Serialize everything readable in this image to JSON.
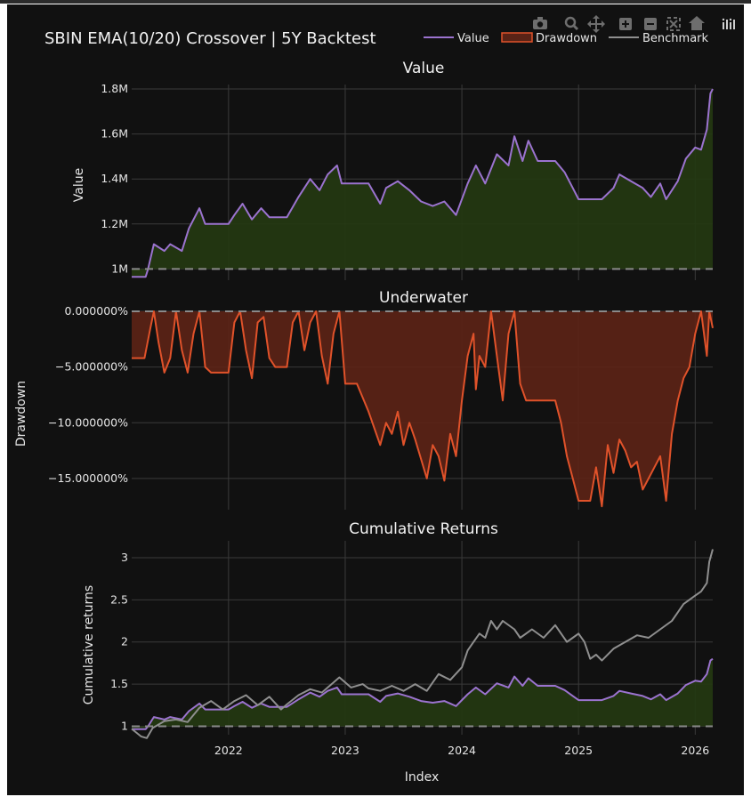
{
  "page": {
    "title": "SBIN EMA(10/20) Crossover | 5Y Backtest"
  },
  "legend": {
    "items": [
      {
        "label": "Value",
        "color": "#9b73cf",
        "kind": "line"
      },
      {
        "label": "Drawdown",
        "color": "#e0522a",
        "kind": "fill"
      },
      {
        "label": "Benchmark",
        "color": "#8f8f8f",
        "kind": "line"
      }
    ]
  },
  "modebar": {
    "icons": [
      "camera-icon",
      "zoom-icon",
      "pan-icon",
      "zoom-in-icon",
      "zoom-out-icon",
      "autoscale-icon",
      "home-icon",
      "plotly-logo-icon"
    ]
  },
  "colors": {
    "background": "#111111",
    "value": "#9b73cf",
    "value_fill": "#243812",
    "drawdown": "#e0522a",
    "drawdown_fill": "#5a2316",
    "benchmark": "#8f8f8f",
    "baseline": "#8a8a8a"
  },
  "x_axis": {
    "title": "Index",
    "ticks": [
      "2022",
      "2023",
      "2024",
      "2025",
      "2026"
    ],
    "tick_values": [
      2022.0,
      2023.0,
      2024.0,
      2025.0,
      2026.0
    ],
    "range": [
      2021.17,
      2026.15
    ]
  },
  "chart_data": [
    {
      "type": "area",
      "subtitle": "Value",
      "ylabel": "Value",
      "yticks": [
        "1M",
        "1.2M",
        "1.4M",
        "1.6M",
        "1.8M"
      ],
      "ytick_values": [
        1000000,
        1200000,
        1400000,
        1600000,
        1800000
      ],
      "ylim": [
        950000,
        1820000
      ],
      "baseline": 1000000,
      "series": [
        {
          "name": "Value",
          "x": [
            2021.17,
            2021.29,
            2021.31,
            2021.36,
            2021.45,
            2021.5,
            2021.6,
            2021.66,
            2021.75,
            2021.8,
            2021.92,
            2022.0,
            2022.05,
            2022.12,
            2022.2,
            2022.28,
            2022.35,
            2022.42,
            2022.5,
            2022.6,
            2022.7,
            2022.78,
            2022.85,
            2022.93,
            2022.97,
            2023.05,
            2023.2,
            2023.3,
            2023.35,
            2023.45,
            2023.55,
            2023.65,
            2023.75,
            2023.85,
            2023.95,
            2024.05,
            2024.12,
            2024.2,
            2024.3,
            2024.4,
            2024.45,
            2024.52,
            2024.57,
            2024.65,
            2024.8,
            2024.88,
            2024.95,
            2025.0,
            2025.2,
            2025.3,
            2025.35,
            2025.45,
            2025.55,
            2025.62,
            2025.7,
            2025.75,
            2025.85,
            2025.92,
            2026.0,
            2026.05,
            2026.1,
            2026.13,
            2026.15
          ],
          "y": [
            965000,
            965000,
            1000000,
            1110000,
            1080000,
            1110000,
            1080000,
            1180000,
            1270000,
            1200000,
            1200000,
            1200000,
            1240000,
            1290000,
            1220000,
            1270000,
            1230000,
            1230000,
            1230000,
            1320000,
            1400000,
            1350000,
            1420000,
            1460000,
            1380000,
            1380000,
            1380000,
            1290000,
            1360000,
            1390000,
            1350000,
            1300000,
            1280000,
            1300000,
            1240000,
            1380000,
            1460000,
            1380000,
            1510000,
            1460000,
            1590000,
            1480000,
            1570000,
            1480000,
            1480000,
            1430000,
            1360000,
            1310000,
            1310000,
            1360000,
            1420000,
            1390000,
            1360000,
            1320000,
            1380000,
            1310000,
            1390000,
            1490000,
            1540000,
            1530000,
            1620000,
            1780000,
            1800000
          ]
        }
      ]
    },
    {
      "type": "area",
      "subtitle": "Underwater",
      "ylabel": "Drawdown",
      "yticks": [
        "0.000000%",
        "−5.000000%",
        "−10.000000%",
        "−15.000000%"
      ],
      "ytick_values": [
        0,
        -5,
        -10,
        -15
      ],
      "ylim": [
        -17.8,
        0
      ],
      "baseline": 0,
      "series": [
        {
          "name": "Drawdown",
          "x": [
            2021.17,
            2021.28,
            2021.33,
            2021.36,
            2021.4,
            2021.45,
            2021.5,
            2021.55,
            2021.6,
            2021.65,
            2021.7,
            2021.75,
            2021.8,
            2021.85,
            2021.92,
            2022.0,
            2022.05,
            2022.1,
            2022.15,
            2022.2,
            2022.25,
            2022.3,
            2022.35,
            2022.4,
            2022.45,
            2022.5,
            2022.55,
            2022.6,
            2022.65,
            2022.7,
            2022.75,
            2022.8,
            2022.85,
            2022.9,
            2022.95,
            2023.0,
            2023.1,
            2023.2,
            2023.3,
            2023.35,
            2023.4,
            2023.45,
            2023.5,
            2023.55,
            2023.6,
            2023.7,
            2023.75,
            2023.8,
            2023.85,
            2023.9,
            2023.95,
            2024.0,
            2024.05,
            2024.1,
            2024.12,
            2024.15,
            2024.2,
            2024.25,
            2024.3,
            2024.35,
            2024.4,
            2024.45,
            2024.5,
            2024.55,
            2024.6,
            2024.65,
            2024.7,
            2024.75,
            2024.8,
            2024.85,
            2024.9,
            2024.95,
            2025.0,
            2025.1,
            2025.15,
            2025.2,
            2025.25,
            2025.3,
            2025.35,
            2025.4,
            2025.45,
            2025.5,
            2025.55,
            2025.6,
            2025.65,
            2025.7,
            2025.75,
            2025.8,
            2025.85,
            2025.9,
            2025.95,
            2026.0,
            2026.05,
            2026.1,
            2026.12,
            2026.15
          ],
          "y": [
            -4.2,
            -4.2,
            -1.5,
            0,
            -2.8,
            -5.5,
            -4.2,
            0,
            -3.5,
            -5.5,
            -2.0,
            0,
            -5.0,
            -5.5,
            -5.5,
            -5.5,
            -1.0,
            0,
            -3.5,
            -6.0,
            -1.0,
            -0.5,
            -4.2,
            -5.0,
            -5.0,
            -5.0,
            -1.0,
            0,
            -3.5,
            -1.0,
            0,
            -4.0,
            -6.5,
            -2.0,
            0,
            -6.5,
            -6.5,
            -9.0,
            -12.0,
            -10.0,
            -11.0,
            -9.0,
            -12.0,
            -10.0,
            -11.5,
            -15.0,
            -12.0,
            -13.0,
            -15.2,
            -11.0,
            -13.0,
            -8.0,
            -4.0,
            -2.0,
            -7.0,
            -4.0,
            -5.0,
            0,
            -4.0,
            -8.0,
            -2.0,
            0,
            -6.5,
            -8.0,
            -8.0,
            -8.0,
            -8.0,
            -8.0,
            -8.0,
            -10.0,
            -13.0,
            -15.0,
            -17.0,
            -17.0,
            -14.0,
            -17.5,
            -12.0,
            -14.5,
            -11.5,
            -12.5,
            -14.0,
            -13.5,
            -16.0,
            -15.0,
            -14.0,
            -13.0,
            -17.0,
            -11.0,
            -8.0,
            -6.0,
            -5.0,
            -2.0,
            0,
            -4.0,
            0,
            -1.5
          ]
        }
      ]
    },
    {
      "type": "line",
      "subtitle": "Cumulative Returns",
      "ylabel": "Cumulative returns",
      "yticks": [
        "1",
        "1.5",
        "2",
        "2.5",
        "3"
      ],
      "ytick_values": [
        1,
        1.5,
        2,
        2.5,
        3
      ],
      "ylim": [
        0.9,
        3.2
      ],
      "baseline": 1,
      "series": [
        {
          "name": "Value",
          "x": [
            2021.17,
            2021.29,
            2021.31,
            2021.36,
            2021.45,
            2021.5,
            2021.6,
            2021.66,
            2021.75,
            2021.8,
            2021.92,
            2022.0,
            2022.05,
            2022.12,
            2022.2,
            2022.28,
            2022.35,
            2022.42,
            2022.5,
            2022.6,
            2022.7,
            2022.78,
            2022.85,
            2022.93,
            2022.97,
            2023.05,
            2023.2,
            2023.3,
            2023.35,
            2023.45,
            2023.55,
            2023.65,
            2023.75,
            2023.85,
            2023.95,
            2024.05,
            2024.12,
            2024.2,
            2024.3,
            2024.4,
            2024.45,
            2024.52,
            2024.57,
            2024.65,
            2024.8,
            2024.88,
            2024.95,
            2025.0,
            2025.2,
            2025.3,
            2025.35,
            2025.45,
            2025.55,
            2025.62,
            2025.7,
            2025.75,
            2025.85,
            2025.92,
            2026.0,
            2026.05,
            2026.1,
            2026.13,
            2026.15
          ],
          "y": [
            0.965,
            0.965,
            1.0,
            1.11,
            1.08,
            1.11,
            1.08,
            1.18,
            1.27,
            1.2,
            1.2,
            1.2,
            1.24,
            1.29,
            1.22,
            1.27,
            1.23,
            1.23,
            1.23,
            1.32,
            1.4,
            1.35,
            1.42,
            1.46,
            1.38,
            1.38,
            1.38,
            1.29,
            1.36,
            1.39,
            1.35,
            1.3,
            1.28,
            1.3,
            1.24,
            1.38,
            1.46,
            1.38,
            1.51,
            1.46,
            1.59,
            1.48,
            1.57,
            1.48,
            1.48,
            1.43,
            1.36,
            1.31,
            1.31,
            1.36,
            1.42,
            1.39,
            1.36,
            1.32,
            1.38,
            1.31,
            1.39,
            1.49,
            1.54,
            1.53,
            1.62,
            1.78,
            1.8
          ]
        },
        {
          "name": "Benchmark",
          "x": [
            2021.17,
            2021.25,
            2021.3,
            2021.35,
            2021.45,
            2021.55,
            2021.65,
            2021.75,
            2021.85,
            2021.95,
            2022.05,
            2022.15,
            2022.25,
            2022.35,
            2022.45,
            2022.5,
            2022.6,
            2022.7,
            2022.8,
            2022.9,
            2022.95,
            2023.05,
            2023.15,
            2023.2,
            2023.3,
            2023.4,
            2023.5,
            2023.6,
            2023.7,
            2023.8,
            2023.9,
            2024.0,
            2024.05,
            2024.1,
            2024.15,
            2024.2,
            2024.25,
            2024.3,
            2024.35,
            2024.45,
            2024.5,
            2024.55,
            2024.6,
            2024.7,
            2024.8,
            2024.9,
            2024.95,
            2025.0,
            2025.05,
            2025.1,
            2025.15,
            2025.2,
            2025.3,
            2025.4,
            2025.5,
            2025.6,
            2025.7,
            2025.8,
            2025.9,
            2026.0,
            2026.05,
            2026.1,
            2026.12,
            2026.15
          ],
          "y": [
            0.97,
            0.88,
            0.86,
            0.98,
            1.06,
            1.08,
            1.05,
            1.22,
            1.3,
            1.2,
            1.3,
            1.37,
            1.25,
            1.35,
            1.2,
            1.26,
            1.37,
            1.44,
            1.4,
            1.52,
            1.58,
            1.46,
            1.5,
            1.45,
            1.42,
            1.48,
            1.42,
            1.5,
            1.42,
            1.62,
            1.55,
            1.7,
            1.9,
            2.0,
            2.1,
            2.05,
            2.25,
            2.15,
            2.25,
            2.15,
            2.05,
            2.1,
            2.15,
            2.05,
            2.2,
            2.0,
            2.05,
            2.1,
            2.0,
            1.8,
            1.85,
            1.78,
            1.92,
            2.0,
            2.08,
            2.05,
            2.15,
            2.25,
            2.45,
            2.55,
            2.6,
            2.7,
            2.95,
            3.1
          ]
        }
      ]
    }
  ]
}
